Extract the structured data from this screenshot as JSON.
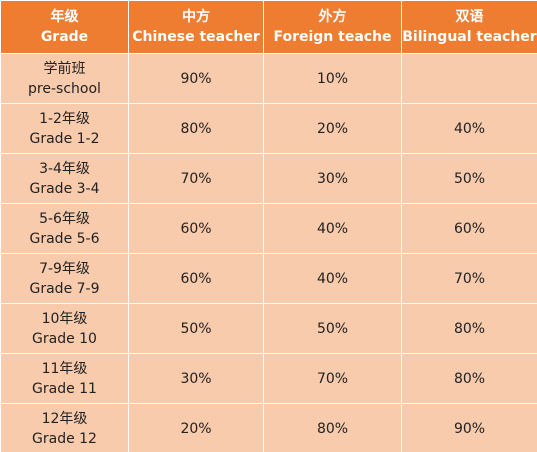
{
  "header": [
    {
      "zh": "年级",
      "en": "Grade"
    },
    {
      "zh": "中方",
      "en": "Chinese teacher"
    },
    {
      "zh": "外方",
      "en": "Foreign teache"
    },
    {
      "zh": "双语",
      "en": "Bilingual teacher"
    }
  ],
  "rows": [
    {
      "grade_zh": "学前班",
      "grade_en": "pre-school",
      "chinese": "90%",
      "foreign": "10%",
      "bilingual": ""
    },
    {
      "grade_zh": "1-2年级",
      "grade_en": "Grade 1-2",
      "chinese": "80%",
      "foreign": "20%",
      "bilingual": "40%"
    },
    {
      "grade_zh": "3-4年级",
      "grade_en": "Grade 3-4",
      "chinese": "70%",
      "foreign": "30%",
      "bilingual": "50%"
    },
    {
      "grade_zh": "5-6年级",
      "grade_en": "Grade 5-6",
      "chinese": "60%",
      "foreign": "40%",
      "bilingual": "60%"
    },
    {
      "grade_zh": "7-9年级",
      "grade_en": "Grade 7-9",
      "chinese": "60%",
      "foreign": "40%",
      "bilingual": "70%"
    },
    {
      "grade_zh": "10年级",
      "grade_en": "Grade 10",
      "chinese": "50%",
      "foreign": "50%",
      "bilingual": "80%"
    },
    {
      "grade_zh": "11年级",
      "grade_en": "Grade 11",
      "chinese": "30%",
      "foreign": "70%",
      "bilingual": "80%"
    },
    {
      "grade_zh": "12年级",
      "grade_en": "Grade 12",
      "chinese": "20%",
      "foreign": "80%",
      "bilingual": "90%"
    }
  ],
  "colors": {
    "header_bg": "#ee7d32",
    "cell_bg": "#f8cbad"
  }
}
